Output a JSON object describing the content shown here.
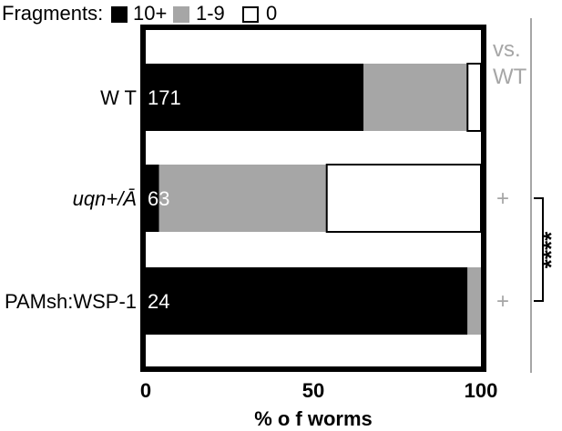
{
  "chart_data": {
    "type": "bar",
    "orientation": "horizontal",
    "stacked": true,
    "legend_title": "Fragments:",
    "series": [
      {
        "name": "10+",
        "color": "#000000",
        "values": [
          65,
          4,
          96
        ]
      },
      {
        "name": "1-9",
        "color": "#a6a6a6",
        "values": [
          31,
          50,
          4
        ]
      },
      {
        "name": "0",
        "color": "#ffffff",
        "values": [
          4,
          46,
          0
        ]
      }
    ],
    "categories": [
      "W T",
      "uqn+/Ā",
      "PAMsh:WSP-1"
    ],
    "category_italic": [
      false,
      true,
      false
    ],
    "n_labels": [
      "171",
      "63",
      "24"
    ],
    "xlim": [
      0,
      100
    ],
    "xticks": [
      "0",
      "50",
      "100"
    ],
    "xlabel": "% o f worms",
    "comparison_header": "vs. WT",
    "comparison_marks": [
      "+",
      "+"
    ],
    "significance": "****",
    "legend_placement": "top",
    "grid": false
  }
}
